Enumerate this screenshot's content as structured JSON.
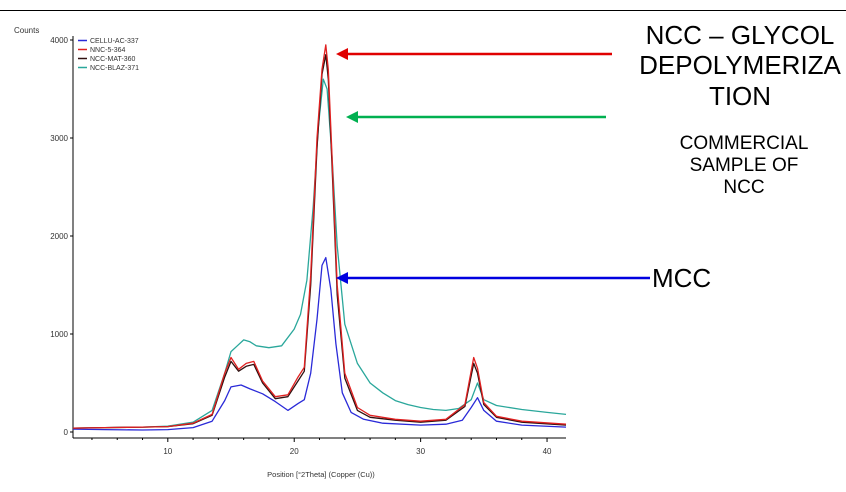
{
  "chart_data": {
    "type": "line",
    "ylabel": "Counts",
    "xlabel": "Position [°2Theta] (Copper (Cu))",
    "xlim": [
      2.5,
      41.5
    ],
    "ylim": [
      0,
      4000
    ],
    "xticks": [
      10,
      20,
      30,
      40
    ],
    "yticks": [
      0,
      1000,
      2000,
      3000,
      4000
    ],
    "grid": false,
    "legend_position": "top-left",
    "series": [
      {
        "name": "CELLU-AC-337",
        "color": "#2a2ad8",
        "x": [
          2.5,
          5,
          8,
          10,
          12,
          13.5,
          14.5,
          15,
          15.8,
          16.5,
          17.5,
          18.5,
          19.5,
          20.3,
          20.8,
          21.3,
          21.8,
          22.2,
          22.5,
          22.9,
          23.3,
          23.8,
          24.5,
          25.5,
          27,
          30,
          32,
          33.3,
          34,
          34.5,
          35,
          36,
          38,
          41.5
        ],
        "y": [
          30,
          25,
          20,
          25,
          45,
          110,
          320,
          460,
          480,
          440,
          390,
          310,
          220,
          290,
          330,
          600,
          1150,
          1700,
          1780,
          1450,
          900,
          400,
          200,
          130,
          90,
          70,
          80,
          120,
          250,
          350,
          220,
          110,
          70,
          50
        ]
      },
      {
        "name": "NNC-5-364",
        "color": "#e02020",
        "x": [
          2.5,
          5,
          8,
          10,
          12,
          13.5,
          14.5,
          15,
          15.6,
          16.2,
          16.8,
          17.5,
          18.5,
          19.5,
          20.3,
          20.8,
          21.3,
          21.8,
          22.2,
          22.5,
          22.7,
          23,
          23.4,
          24,
          25,
          26,
          28,
          30,
          32,
          33.5,
          34.2,
          34.5,
          35,
          36,
          38,
          41.5
        ],
        "y": [
          40,
          45,
          50,
          55,
          90,
          180,
          600,
          760,
          640,
          700,
          720,
          520,
          360,
          380,
          560,
          660,
          1600,
          3000,
          3700,
          3950,
          3700,
          2800,
          1500,
          600,
          250,
          170,
          130,
          110,
          130,
          280,
          760,
          650,
          300,
          160,
          110,
          80
        ]
      },
      {
        "name": "NCC-MAT-360",
        "color": "#301010",
        "x": [
          2.5,
          5,
          8,
          10,
          12,
          13.5,
          14.5,
          15,
          15.6,
          16.2,
          16.8,
          17.5,
          18.5,
          19.5,
          20.3,
          20.8,
          21.3,
          21.8,
          22.2,
          22.5,
          22.7,
          23,
          23.4,
          24,
          25,
          26,
          28,
          30,
          32,
          33.5,
          34.2,
          34.5,
          35,
          36,
          38,
          41.5
        ],
        "y": [
          40,
          45,
          50,
          55,
          85,
          170,
          560,
          720,
          620,
          670,
          690,
          500,
          340,
          360,
          520,
          620,
          1500,
          2900,
          3650,
          3850,
          3600,
          2700,
          1400,
          550,
          220,
          150,
          120,
          100,
          120,
          260,
          700,
          600,
          280,
          150,
          100,
          70
        ]
      },
      {
        "name": "NCC-BLAZ-371",
        "color": "#2aa79b",
        "x": [
          2.5,
          5,
          8,
          10,
          12,
          13.5,
          14.5,
          15,
          15.5,
          16,
          16.5,
          17,
          18,
          19,
          20,
          20.5,
          21,
          21.5,
          21.9,
          22.3,
          22.6,
          23,
          23.4,
          24,
          25,
          26,
          27,
          28,
          29,
          30,
          31,
          32,
          33,
          34,
          34.5,
          35,
          36,
          38,
          40,
          41.5
        ],
        "y": [
          40,
          45,
          50,
          60,
          100,
          220,
          600,
          820,
          880,
          940,
          920,
          880,
          860,
          880,
          1050,
          1200,
          1550,
          2300,
          3100,
          3600,
          3500,
          2800,
          1900,
          1100,
          700,
          500,
          400,
          320,
          280,
          250,
          230,
          220,
          240,
          330,
          500,
          330,
          270,
          230,
          200,
          180
        ]
      }
    ]
  },
  "annotations": {
    "glycol": [
      "NCC – GLYCOL",
      "DEPOLYMERIZA",
      "TION"
    ],
    "commercial": [
      "COMMERCIAL",
      "SAMPLE OF",
      "NCC"
    ],
    "mcc": "MCC",
    "arrow_colors": {
      "glycol": "#e00000",
      "commercial": "#00b050",
      "mcc": "#0000e0"
    }
  },
  "style": {
    "axis_color": "#000000",
    "tick_label_color": "#333333"
  }
}
